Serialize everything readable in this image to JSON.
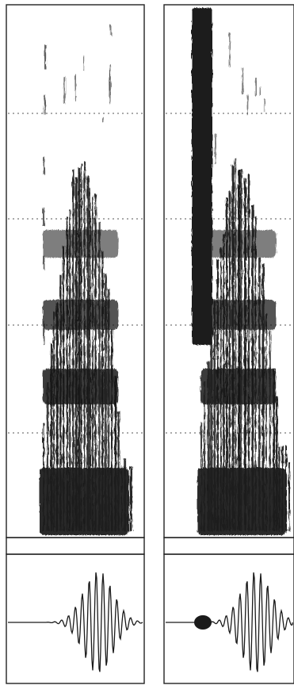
{
  "figure": {
    "kind": "spectrogram-with-waveforms",
    "panel_count": 2,
    "ink_color": "#1a1a1a",
    "background_color": "#ffffff",
    "gridline_style": "dotted",
    "panels": [
      {
        "id": "left",
        "has_initial_burst": false
      },
      {
        "id": "right",
        "has_initial_burst": true
      }
    ]
  }
}
